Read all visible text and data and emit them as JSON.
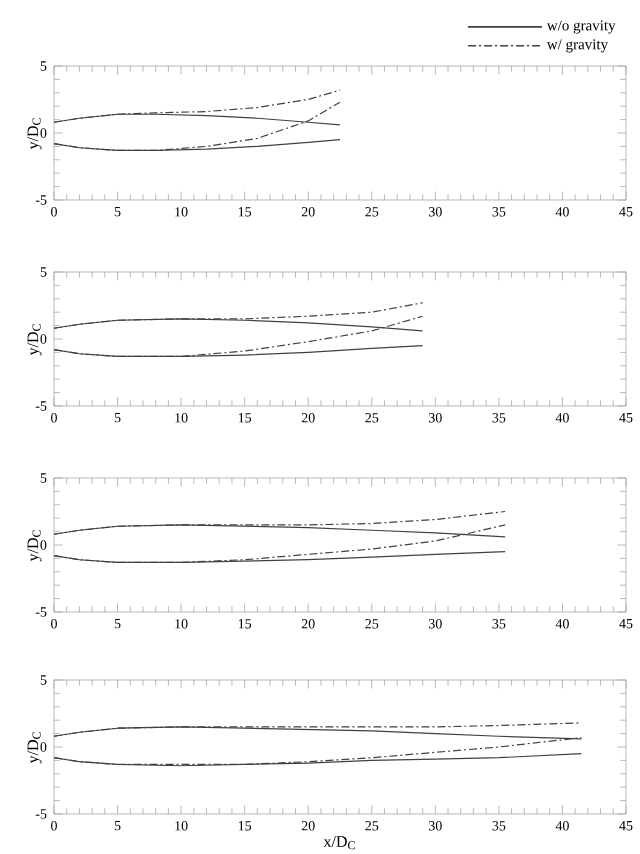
{
  "chart_data": [
    {
      "type": "line",
      "ylabel": "y/D$_{C}$",
      "xlim": [
        0,
        45
      ],
      "ylim": [
        -5,
        5
      ],
      "xticks": [
        0,
        5,
        10,
        15,
        20,
        25,
        30,
        35,
        40,
        45
      ],
      "yticks": [
        -5,
        0,
        5
      ],
      "legend": "top right",
      "series": [
        {
          "name": "w/o gravity",
          "color": "#404040",
          "line_style": "solid",
          "x": [
            0,
            2,
            5,
            8,
            12,
            16,
            20,
            22.5
          ],
          "values": [
            0.8,
            1.1,
            1.4,
            1.4,
            1.3,
            1.1,
            0.8,
            0.6
          ]
        },
        {
          "color": "#404040",
          "line_style": "solid",
          "x": [
            0,
            2,
            5,
            8,
            12,
            16,
            20,
            22.5
          ],
          "values": [
            -0.8,
            -1.1,
            -1.3,
            -1.3,
            -1.2,
            -1.0,
            -0.7,
            -0.5
          ]
        },
        {
          "name": "w/   gravity",
          "color": "#404040",
          "line_style": "dashdot",
          "x": [
            0,
            2,
            5,
            8,
            12,
            16,
            20,
            22.5
          ],
          "values": [
            0.8,
            1.1,
            1.4,
            1.5,
            1.6,
            1.9,
            2.5,
            3.2
          ]
        },
        {
          "color": "#404040",
          "line_style": "dashdot",
          "x": [
            0,
            2,
            5,
            8,
            12,
            16,
            20,
            22.5
          ],
          "values": [
            -0.8,
            -1.1,
            -1.3,
            -1.3,
            -1.0,
            -0.4,
            0.9,
            2.3
          ]
        }
      ]
    },
    {
      "type": "line",
      "ylabel": "y/D$_{C}$",
      "xlim": [
        0,
        45
      ],
      "ylim": [
        -5,
        5
      ],
      "xticks": [
        0,
        5,
        10,
        15,
        20,
        25,
        30,
        35,
        40,
        45
      ],
      "yticks": [
        -5,
        0,
        5
      ],
      "series": [
        {
          "color": "#404040",
          "line_style": "solid",
          "x": [
            0,
            2,
            5,
            10,
            15,
            20,
            25,
            29
          ],
          "values": [
            0.8,
            1.1,
            1.4,
            1.5,
            1.4,
            1.2,
            0.9,
            0.6
          ]
        },
        {
          "color": "#404040",
          "line_style": "solid",
          "x": [
            0,
            2,
            5,
            10,
            15,
            20,
            25,
            29
          ],
          "values": [
            -0.8,
            -1.1,
            -1.3,
            -1.3,
            -1.2,
            -1.0,
            -0.7,
            -0.5
          ]
        },
        {
          "color": "#404040",
          "line_style": "dashdot",
          "x": [
            0,
            2,
            5,
            10,
            15,
            20,
            25,
            29
          ],
          "values": [
            0.8,
            1.1,
            1.4,
            1.5,
            1.5,
            1.7,
            2.0,
            2.7
          ]
        },
        {
          "color": "#404040",
          "line_style": "dashdot",
          "x": [
            0,
            2,
            5,
            10,
            15,
            20,
            25,
            29
          ],
          "values": [
            -0.8,
            -1.1,
            -1.3,
            -1.3,
            -0.9,
            -0.2,
            0.6,
            1.7
          ]
        }
      ]
    },
    {
      "type": "line",
      "ylabel": "y/D$_{C}$",
      "xlim": [
        0,
        45
      ],
      "ylim": [
        -5,
        5
      ],
      "xticks": [
        0,
        5,
        10,
        15,
        20,
        25,
        30,
        35,
        40,
        45
      ],
      "yticks": [
        -5,
        0,
        5
      ],
      "series": [
        {
          "color": "#404040",
          "line_style": "solid",
          "x": [
            0,
            2,
            5,
            10,
            15,
            20,
            25,
            30,
            35.5
          ],
          "values": [
            0.8,
            1.1,
            1.4,
            1.5,
            1.4,
            1.3,
            1.1,
            0.9,
            0.6
          ]
        },
        {
          "color": "#404040",
          "line_style": "solid",
          "x": [
            0,
            2,
            5,
            10,
            15,
            20,
            25,
            30,
            35.5
          ],
          "values": [
            -0.8,
            -1.1,
            -1.3,
            -1.3,
            -1.2,
            -1.1,
            -0.9,
            -0.7,
            -0.5
          ]
        },
        {
          "color": "#404040",
          "line_style": "dashdot",
          "x": [
            0,
            2,
            5,
            10,
            15,
            20,
            25,
            30,
            35.5
          ],
          "values": [
            0.8,
            1.1,
            1.4,
            1.5,
            1.5,
            1.5,
            1.6,
            1.9,
            2.5
          ]
        },
        {
          "color": "#404040",
          "line_style": "dashdot",
          "x": [
            0,
            2,
            5,
            10,
            15,
            20,
            25,
            30,
            35.5
          ],
          "values": [
            -0.8,
            -1.1,
            -1.3,
            -1.3,
            -1.1,
            -0.7,
            -0.3,
            0.3,
            1.5
          ]
        }
      ]
    },
    {
      "type": "line",
      "xlabel": "x/D$_{C}$",
      "ylabel": "y/D$_{C}$",
      "xlim": [
        0,
        45
      ],
      "ylim": [
        -5,
        5
      ],
      "xticks": [
        0,
        5,
        10,
        15,
        20,
        25,
        30,
        35,
        40,
        45
      ],
      "yticks": [
        -5,
        0,
        5
      ],
      "series": [
        {
          "color": "#404040",
          "line_style": "solid",
          "x": [
            0,
            2,
            5,
            10,
            15,
            20,
            25,
            30,
            35,
            41.5
          ],
          "values": [
            0.8,
            1.1,
            1.4,
            1.5,
            1.4,
            1.3,
            1.2,
            1.0,
            0.8,
            0.6
          ]
        },
        {
          "color": "#404040",
          "line_style": "solid",
          "x": [
            0,
            2,
            5,
            10,
            15,
            20,
            25,
            30,
            35,
            41.5
          ],
          "values": [
            -0.8,
            -1.1,
            -1.3,
            -1.4,
            -1.3,
            -1.2,
            -1.0,
            -0.9,
            -0.8,
            -0.5
          ]
        },
        {
          "color": "#404040",
          "line_style": "dashdot",
          "x": [
            0,
            2,
            5,
            10,
            15,
            20,
            25,
            30,
            35,
            41.5
          ],
          "values": [
            0.8,
            1.1,
            1.4,
            1.5,
            1.5,
            1.5,
            1.5,
            1.5,
            1.6,
            1.8
          ]
        },
        {
          "color": "#404040",
          "line_style": "dashdot",
          "x": [
            0,
            2,
            5,
            10,
            15,
            20,
            25,
            30,
            35,
            41.5
          ],
          "values": [
            -0.8,
            -1.1,
            -1.3,
            -1.3,
            -1.3,
            -1.1,
            -0.8,
            -0.4,
            0.0,
            0.7
          ]
        }
      ]
    }
  ]
}
